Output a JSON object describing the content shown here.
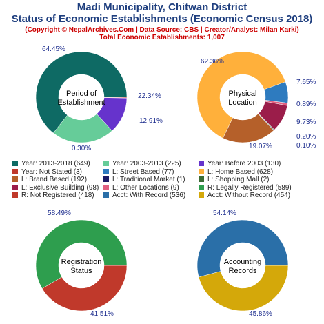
{
  "header": {
    "title_line1": "Madi Municipality, Chitwan District",
    "title_line2": "Status of Economic Establishments (Economic Census 2018)",
    "copyright": "(Copyright © NepalArchives.Com | Data Source: CBS | Creator/Analyst: Milan Karki)",
    "total": "Total Economic Establishments: 1,007"
  },
  "legend": [
    {
      "label": "Year: 2013-2018 (649)",
      "color": "#0e6a64"
    },
    {
      "label": "Year: 2003-2013 (225)",
      "color": "#66cc99"
    },
    {
      "label": "Year: Before 2003 (130)",
      "color": "#6633cc"
    },
    {
      "label": "Year: Not Stated (3)",
      "color": "#c0392b"
    },
    {
      "label": "L: Street Based (77)",
      "color": "#2e7bbf"
    },
    {
      "label": "L: Home Based (628)",
      "color": "#ffb03b"
    },
    {
      "label": "L: Brand Based (192)",
      "color": "#b5602a"
    },
    {
      "label": "L: Traditional Market (1)",
      "color": "#1a1a66"
    },
    {
      "label": "L: Shopping Mall (2)",
      "color": "#3a6b35"
    },
    {
      "label": "L: Exclusive Building (98)",
      "color": "#9b1d4a"
    },
    {
      "label": "L: Other Locations (9)",
      "color": "#e06080"
    },
    {
      "label": "R: Legally Registered (589)",
      "color": "#2e9e4e"
    },
    {
      "label": "R: Not Registered (418)",
      "color": "#c0392b"
    },
    {
      "label": "Acct: With Record (536)",
      "color": "#2a6fa8"
    },
    {
      "label": "Acct: Without Record (454)",
      "color": "#d4a80a"
    }
  ],
  "chart_data": [
    {
      "type": "pie",
      "center_label": [
        "Period of",
        "Establishment"
      ],
      "slices": [
        {
          "name": "Year: 2013-2018",
          "value": 649,
          "label": "64.45%",
          "color": "#0e6a64"
        },
        {
          "name": "Year: 2003-2013",
          "value": 225,
          "label": "22.34%",
          "color": "#66cc99"
        },
        {
          "name": "Year: Before 2003",
          "value": 130,
          "label": "12.91%",
          "color": "#6633cc"
        },
        {
          "name": "Year: Not Stated",
          "value": 3,
          "label": "0.30%",
          "color": "#c0392b"
        }
      ]
    },
    {
      "type": "pie",
      "center_label": [
        "Physical",
        "Location"
      ],
      "slices": [
        {
          "name": "L: Street Based",
          "value": 77,
          "label": "7.65%",
          "color": "#2e7bbf"
        },
        {
          "name": "L: Home Based",
          "value": 628,
          "label": "62.36%",
          "color": "#ffb03b"
        },
        {
          "name": "L: Brand Based",
          "value": 192,
          "label": "19.07%",
          "color": "#b5602a"
        },
        {
          "name": "L: Traditional Market",
          "value": 1,
          "label": "0.10%",
          "color": "#1a1a66"
        },
        {
          "name": "L: Shopping Mall",
          "value": 2,
          "label": "0.20%",
          "color": "#3a6b35"
        },
        {
          "name": "L: Exclusive Building",
          "value": 98,
          "label": "9.73%",
          "color": "#9b1d4a"
        },
        {
          "name": "L: Other Locations",
          "value": 9,
          "label": "0.89%",
          "color": "#e06080"
        }
      ]
    },
    {
      "type": "pie",
      "center_label": [
        "Registration",
        "Status"
      ],
      "slices": [
        {
          "name": "R: Legally Registered",
          "value": 589,
          "label": "58.49%",
          "color": "#2e9e4e"
        },
        {
          "name": "R: Not Registered",
          "value": 418,
          "label": "41.51%",
          "color": "#c0392b"
        }
      ]
    },
    {
      "type": "pie",
      "center_label": [
        "Accounting",
        "Records"
      ],
      "slices": [
        {
          "name": "Acct: With Record",
          "value": 536,
          "label": "54.14%",
          "color": "#2a6fa8"
        },
        {
          "name": "Acct: Without Record",
          "value": 454,
          "label": "45.86%",
          "color": "#d4a80a"
        }
      ]
    }
  ]
}
